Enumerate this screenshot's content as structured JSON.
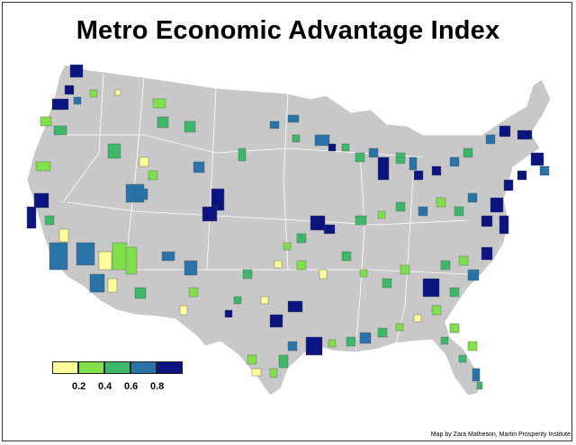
{
  "title": "Metro Economic Advantage Index",
  "credit": "Map by Zara Matheson, Martin Prosperity Institute",
  "legend": {
    "colors": [
      "#ffff99",
      "#80e04a",
      "#3db86b",
      "#2a73a8",
      "#0b1480"
    ],
    "ticks": [
      "0.2",
      "0.4",
      "0.6",
      "0.8"
    ]
  },
  "colors": {
    "land": "#c8c8c8",
    "border": "#ffffff"
  }
}
